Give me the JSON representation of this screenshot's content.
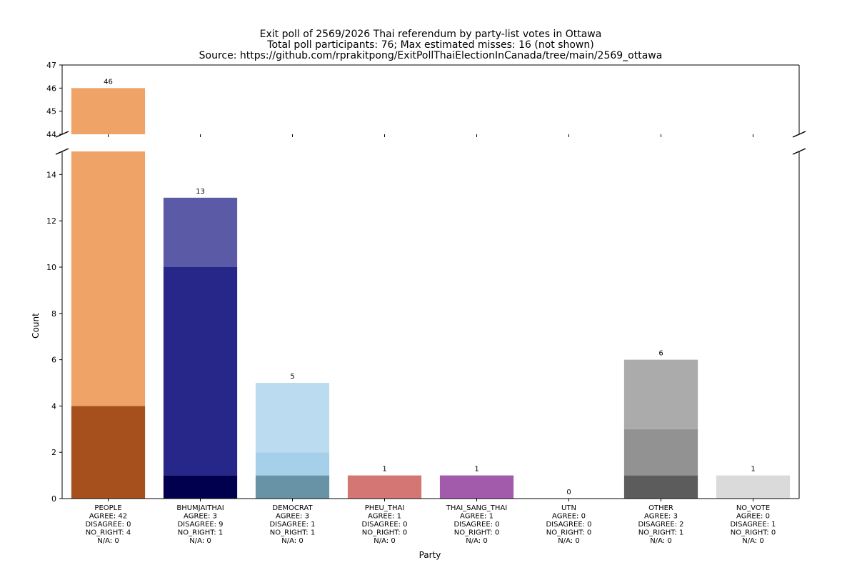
{
  "chart_data": {
    "type": "bar",
    "stacked": true,
    "broken_y_axis": true,
    "title_lines": [
      "Exit poll of 2569/2026 Thai referendum by party-list votes in Ottawa",
      "Total poll participants: 76; Max estimated misses: 16 (not shown)",
      "Source: https://github.com/rprakitpong/ExitPollThaiElectionInCanada/tree/main/2569_ottawa"
    ],
    "xlabel": "Party",
    "ylabel": "Count",
    "ylim_upper": [
      44,
      47
    ],
    "ylim_lower": [
      0,
      15
    ],
    "yticks_upper": [
      44,
      45,
      46,
      47
    ],
    "yticks_lower": [
      0,
      2,
      4,
      6,
      8,
      10,
      12,
      14
    ],
    "grid": false,
    "stack_order": [
      "NO_RIGHT",
      "DISAGREE",
      "AGREE"
    ],
    "categories": [
      {
        "name": "PEOPLE",
        "agree": 42,
        "disagree": 0,
        "no_right": 4,
        "na": 0,
        "total": 46,
        "colors": {
          "agree": "#f0a366",
          "disagree": "#d2691e",
          "no_right": "#a5501d"
        },
        "label_lines": [
          "PEOPLE",
          "AGREE: 42",
          "DISAGREE: 0",
          "NO_RIGHT: 4",
          "N/A: 0"
        ]
      },
      {
        "name": "BHUMJAITHAI",
        "agree": 3,
        "disagree": 9,
        "no_right": 1,
        "na": 0,
        "total": 13,
        "colors": {
          "agree": "#5b5aa6",
          "disagree": "#272689",
          "no_right": "#00004f"
        },
        "label_lines": [
          "BHUMJAITHAI",
          "AGREE: 3",
          "DISAGREE: 9",
          "NO_RIGHT: 1",
          "N/A: 0"
        ]
      },
      {
        "name": "DEMOCRAT",
        "agree": 3,
        "disagree": 1,
        "no_right": 1,
        "na": 0,
        "total": 5,
        "colors": {
          "agree": "#bbdcf0",
          "disagree": "#a6d0ea",
          "no_right": "#6892a6"
        },
        "label_lines": [
          "DEMOCRAT",
          "AGREE: 3",
          "DISAGREE: 1",
          "NO_RIGHT: 1",
          "N/A: 0"
        ]
      },
      {
        "name": "PHEU_THAI",
        "agree": 1,
        "disagree": 0,
        "no_right": 0,
        "na": 0,
        "total": 1,
        "colors": {
          "agree": "#d47673",
          "disagree": "#c04a47",
          "no_right": "#8c2c2a"
        },
        "label_lines": [
          "PHEU_THAI",
          "AGREE: 1",
          "DISAGREE: 0",
          "NO_RIGHT: 0",
          "N/A: 0"
        ]
      },
      {
        "name": "THAI_SANG_THAI",
        "agree": 1,
        "disagree": 0,
        "no_right": 0,
        "na": 0,
        "total": 1,
        "colors": {
          "agree": "#a25aab",
          "disagree": "#7d3a87",
          "no_right": "#532059"
        },
        "label_lines": [
          "THAI_SANG_THAI",
          "AGREE: 1",
          "DISAGREE: 0",
          "NO_RIGHT: 0",
          "N/A: 0"
        ]
      },
      {
        "name": "UTN",
        "agree": 0,
        "disagree": 0,
        "no_right": 0,
        "na": 0,
        "total": 0,
        "colors": {
          "agree": "#2f6db5",
          "disagree": "#1d4f8c",
          "no_right": "#0f2f57"
        },
        "label_lines": [
          "UTN",
          "AGREE: 0",
          "DISAGREE: 0",
          "NO_RIGHT: 0",
          "N/A: 0"
        ]
      },
      {
        "name": "OTHER",
        "agree": 3,
        "disagree": 2,
        "no_right": 1,
        "na": 0,
        "total": 6,
        "colors": {
          "agree": "#ababab",
          "disagree": "#929292",
          "no_right": "#5c5c5c"
        },
        "label_lines": [
          "OTHER",
          "AGREE: 3",
          "DISAGREE: 2",
          "NO_RIGHT: 1",
          "N/A: 0"
        ]
      },
      {
        "name": "NO_VOTE",
        "agree": 0,
        "disagree": 1,
        "no_right": 0,
        "na": 0,
        "total": 1,
        "colors": {
          "agree": "#ececec",
          "disagree": "#dadada",
          "no_right": "#bdbdbd"
        },
        "label_lines": [
          "NO_VOTE",
          "AGREE: 0",
          "DISAGREE: 1",
          "NO_RIGHT: 0",
          "N/A: 0"
        ]
      }
    ]
  }
}
